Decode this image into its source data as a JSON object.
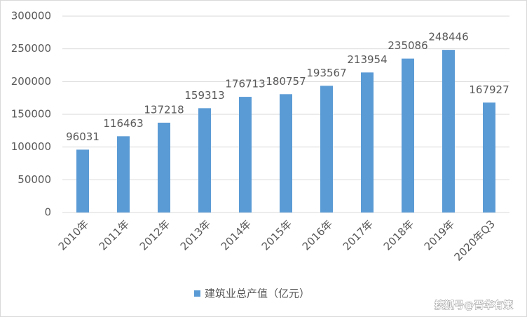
{
  "chart_data": {
    "type": "bar",
    "categories": [
      "2010年",
      "2011年",
      "2012年",
      "2013年",
      "2014年",
      "2015年",
      "2016年",
      "2017年",
      "2018年",
      "2019年",
      "2020年Q3"
    ],
    "series": [
      {
        "name": "建筑业总产值（亿元）",
        "color": "#5b9bd5",
        "values": [
          96031,
          116463,
          137218,
          159313,
          176713,
          180757,
          193567,
          213954,
          235086,
          248446,
          167927
        ]
      }
    ],
    "ylim": [
      0,
      300000
    ],
    "yticks": [
      0,
      50000,
      100000,
      150000,
      200000,
      250000,
      300000
    ],
    "grid": true,
    "legend": "bottom"
  },
  "watermark": "搜狐号@晋华有策"
}
